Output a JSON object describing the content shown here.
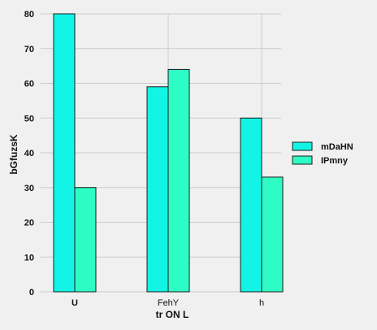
{
  "chart_data": {
    "type": "bar",
    "categories": [
      "U",
      "FehY",
      "h"
    ],
    "category_label_bold": [
      true,
      false,
      false
    ],
    "series": [
      {
        "name": "mDaHN",
        "values": [
          80,
          59,
          50
        ],
        "color": "#12f5e6"
      },
      {
        "name": "IPmny",
        "values": [
          30,
          64,
          33
        ],
        "color": "#2dfcc4"
      }
    ],
    "xlabel": "tr ON L",
    "ylabel": "bGfuzsK",
    "ylim": [
      0,
      80
    ],
    "yticks": [
      0,
      10,
      20,
      30,
      40,
      50,
      60,
      70,
      80
    ],
    "grid": true,
    "legend": "right",
    "background": "#f0f0f0",
    "grid_color": "#cccccc",
    "bar_edge_color": "#1a1a1a"
  }
}
